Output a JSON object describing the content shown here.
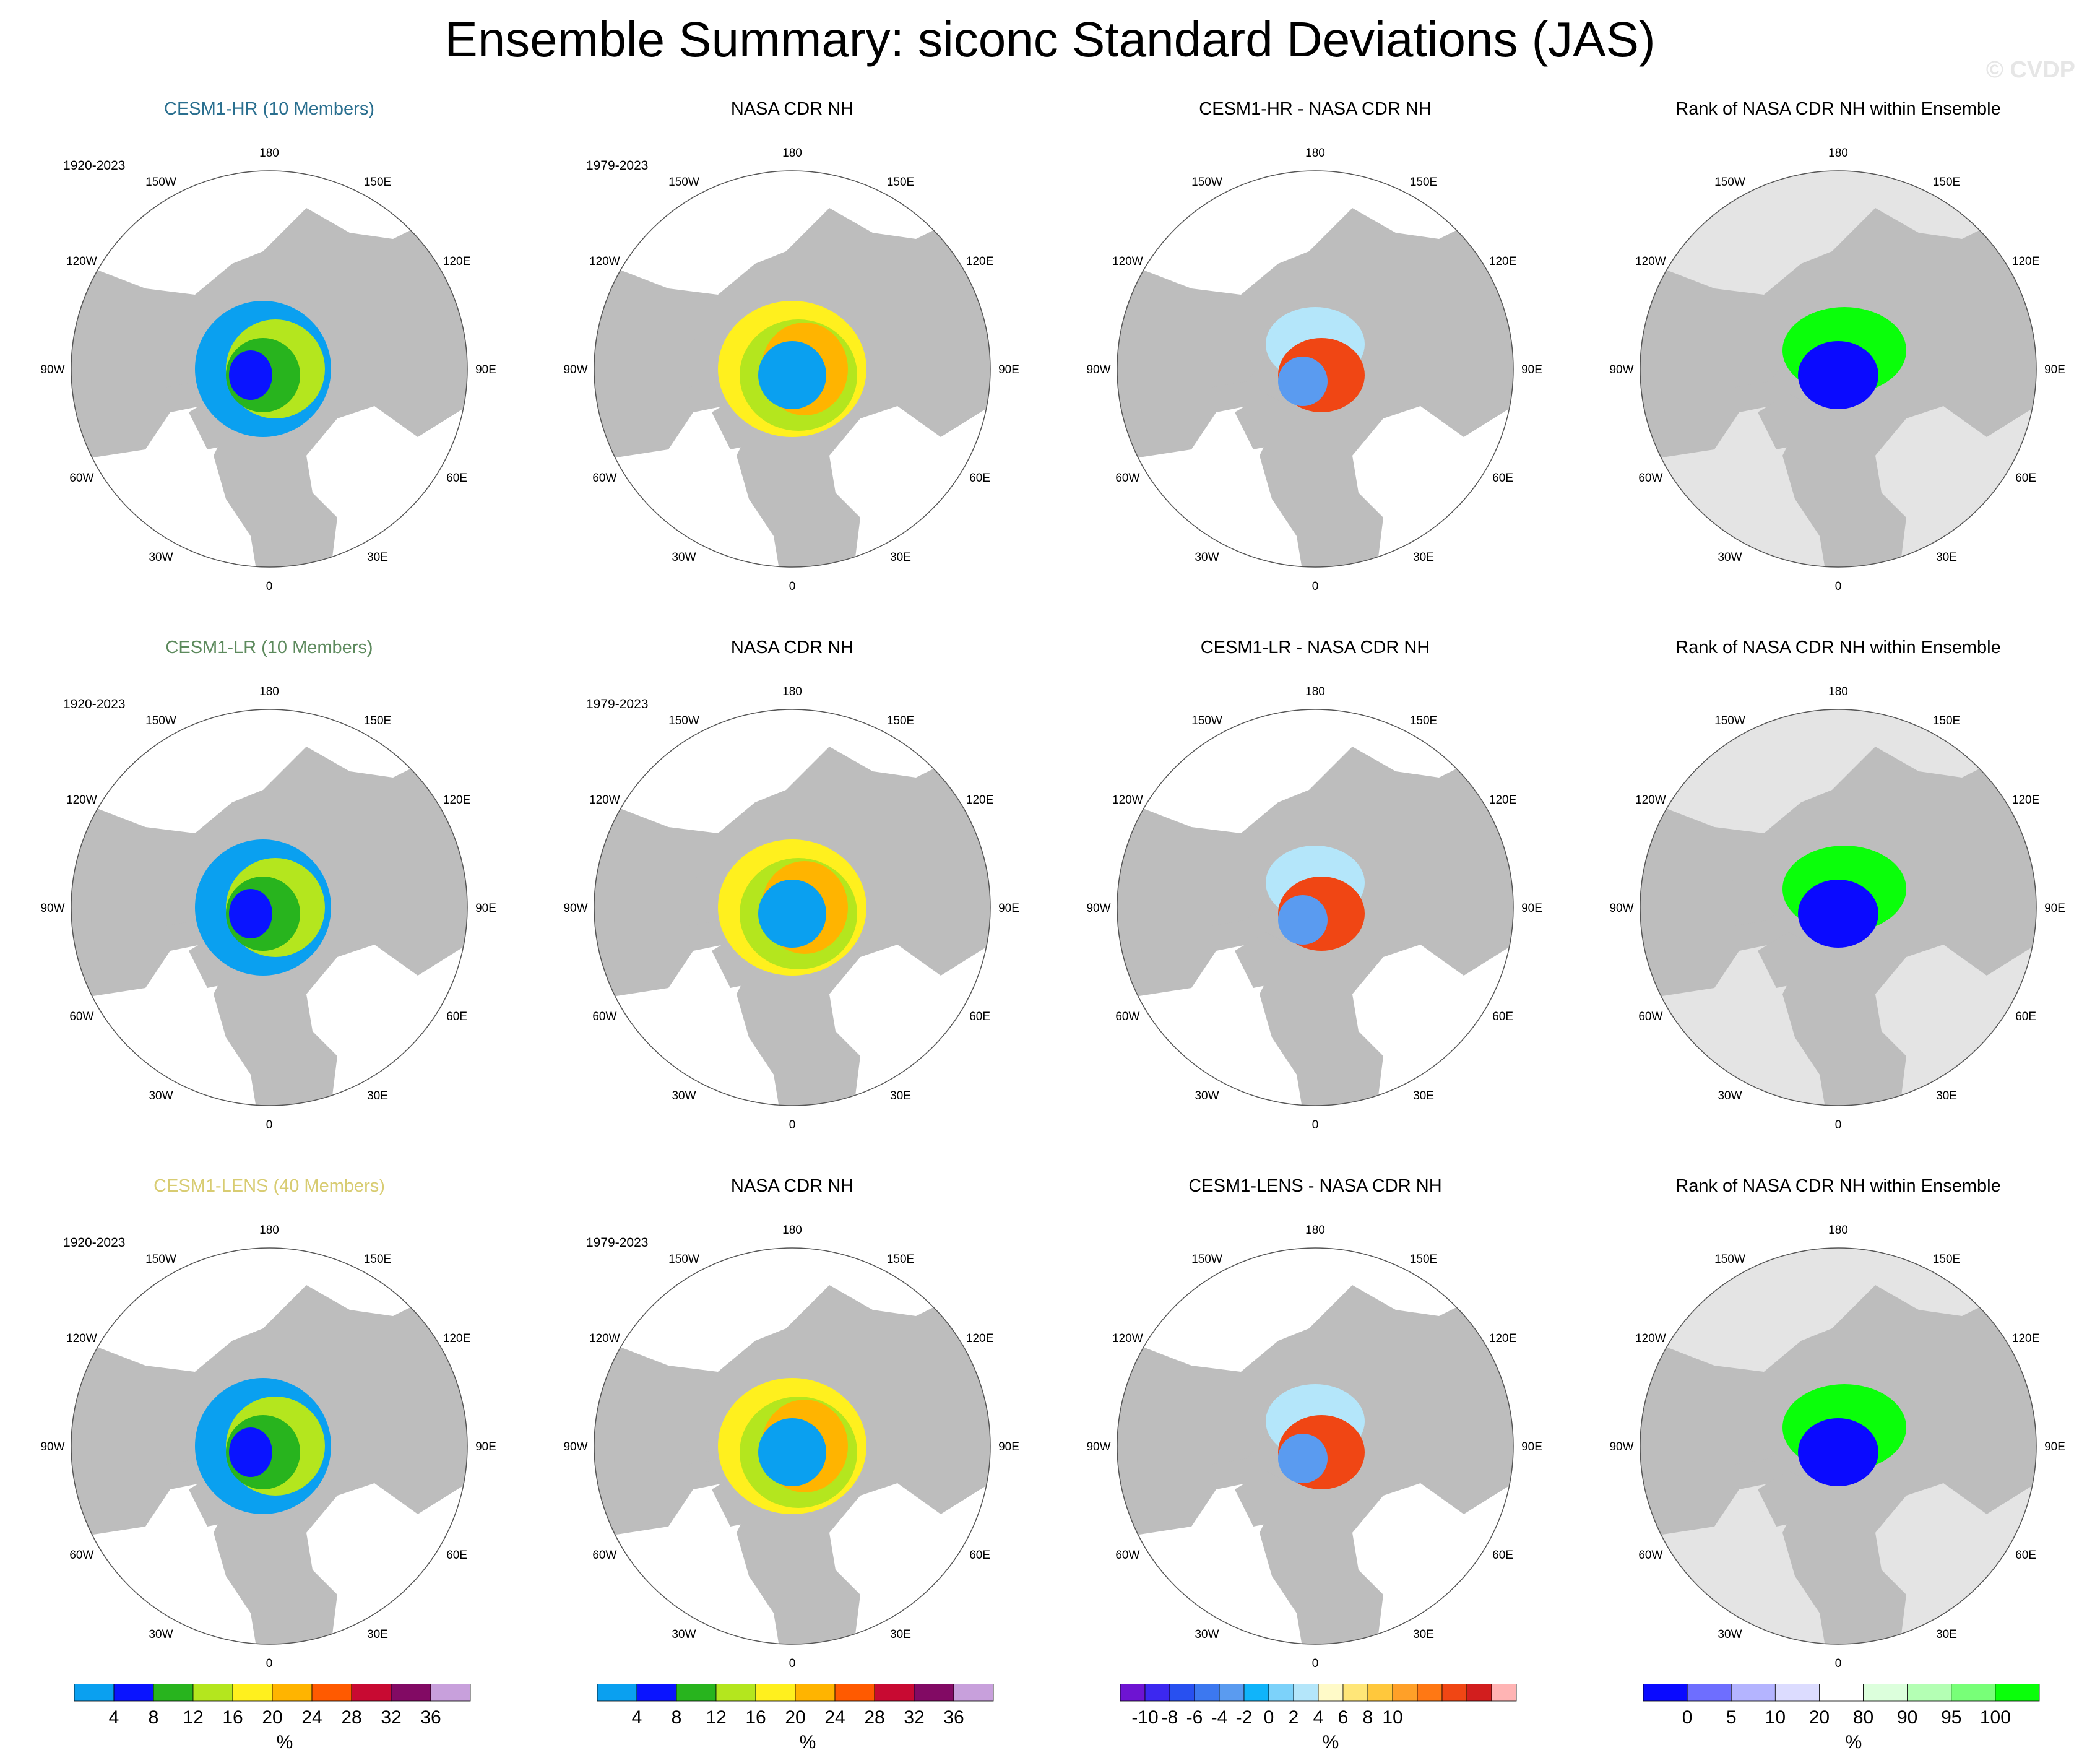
{
  "title": "Ensemble Summary: siconc Standard Deviations (JAS)",
  "watermark": "© CVDP",
  "colors": {
    "land": "#bdbdbd",
    "ocean": "#ffffff",
    "rank_mask": "#e4e4e4",
    "hr_title": "#2a6f8f",
    "lr_title": "#5d8a5d",
    "lens_title": "#d8cc72"
  },
  "lon_labels": [
    "180",
    "150E",
    "120E",
    "90E",
    "60E",
    "30E",
    "0",
    "30W",
    "60W",
    "90W",
    "120W",
    "150W"
  ],
  "rows": [
    {
      "model": {
        "title": "CESM1-HR (10 Members)",
        "period": "1920-2023",
        "color_key": "hr_title"
      },
      "obs": {
        "title": "NASA CDR NH",
        "period": "1979-2023"
      },
      "diff": {
        "title": "CESM1-HR - NASA CDR NH"
      },
      "rank": {
        "title": "Rank of NASA CDR NH within Ensemble"
      }
    },
    {
      "model": {
        "title": "CESM1-LR (10 Members)",
        "period": "1920-2023",
        "color_key": "lr_title"
      },
      "obs": {
        "title": "NASA CDR NH",
        "period": "1979-2023"
      },
      "diff": {
        "title": "CESM1-LR - NASA CDR NH"
      },
      "rank": {
        "title": "Rank of NASA CDR NH within Ensemble"
      }
    },
    {
      "model": {
        "title": "CESM1-LENS (40 Members)",
        "period": "1920-2023",
        "color_key": "lens_title"
      },
      "obs": {
        "title": "NASA CDR NH",
        "period": "1979-2023"
      },
      "diff": {
        "title": "CESM1-LENS - NASA CDR NH"
      },
      "rank": {
        "title": "Rank of NASA CDR NH within Ensemble"
      }
    }
  ],
  "legends": [
    {
      "unit": "%",
      "labels": [
        "4",
        "8",
        "12",
        "16",
        "20",
        "24",
        "28",
        "32",
        "36"
      ],
      "colors": [
        "#0aa0f0",
        "#0a14ff",
        "#28b41e",
        "#b4e61e",
        "#fff01e",
        "#ffb400",
        "#ff5a00",
        "#c80a32",
        "#820a64",
        "#c8a0dc"
      ]
    },
    {
      "unit": "%",
      "labels": [
        "4",
        "8",
        "12",
        "16",
        "20",
        "24",
        "28",
        "32",
        "36"
      ],
      "colors": [
        "#0aa0f0",
        "#0a14ff",
        "#28b41e",
        "#b4e61e",
        "#fff01e",
        "#ffb400",
        "#ff5a00",
        "#c80a32",
        "#820a64",
        "#c8a0dc"
      ]
    },
    {
      "unit": "%",
      "labels": [
        "-10",
        "-8",
        "-6",
        "-4",
        "-2",
        "0",
        "2",
        "4",
        "6",
        "8",
        "10"
      ],
      "colors": [
        "#6e14d2",
        "#3c28f0",
        "#2850f0",
        "#3c78f0",
        "#5a9bf0",
        "#10b4fa",
        "#7cd2fa",
        "#b4e6fa",
        "#fffac8",
        "#ffe678",
        "#ffc83c",
        "#ffa028",
        "#ff7814",
        "#f04614",
        "#d21e1e",
        "#ffb4b4"
      ]
    },
    {
      "unit": "%",
      "labels": [
        "0",
        "5",
        "10",
        "20",
        "80",
        "90",
        "95",
        "100"
      ],
      "colors": [
        "#0a0aff",
        "#6e6eff",
        "#b4b4ff",
        "#dcdcff",
        "#ffffff",
        "#dcffdc",
        "#b4ffb4",
        "#78ff78",
        "#0aff0a"
      ]
    }
  ]
}
